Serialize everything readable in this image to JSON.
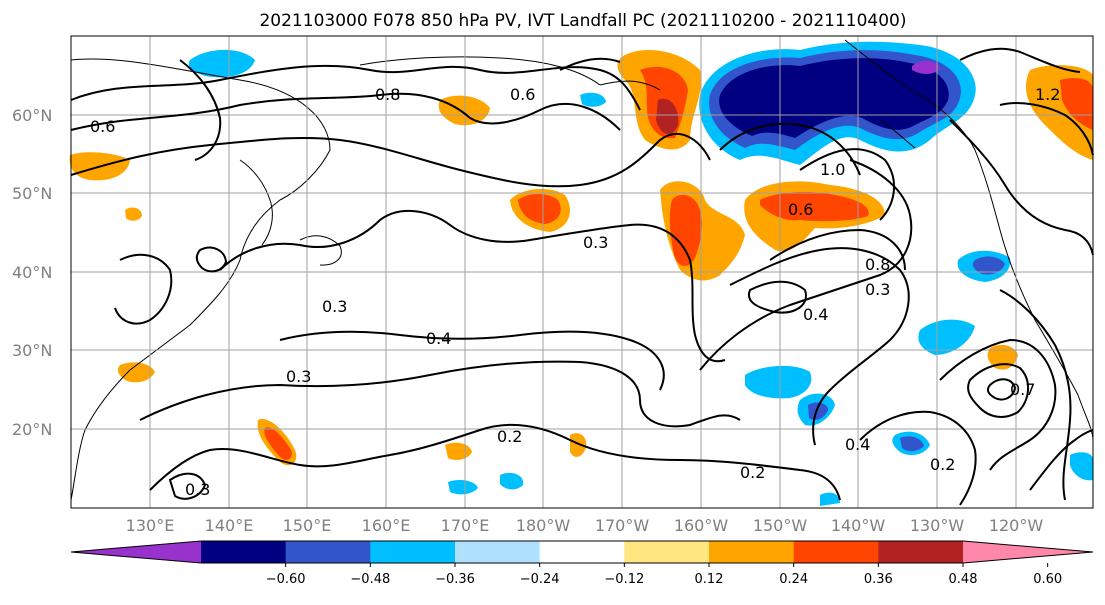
{
  "title": "2021103000 F078 850 hPa PV, IVT Landfall PC (2021110200 - 2021110400)",
  "lat_labels": [
    "60°N",
    "50°N",
    "40°N",
    "30°N",
    "20°N"
  ],
  "lon_labels": [
    "130°E",
    "140°E",
    "150°E",
    "160°E",
    "170°E",
    "180°W",
    "170°W",
    "160°W",
    "150°W",
    "140°W",
    "130°W",
    "120°W"
  ],
  "colorbar": {
    "ticks": [
      "−0.60",
      "−0.48",
      "−0.36",
      "−0.24",
      "−0.12",
      "0.12",
      "0.24",
      "0.36",
      "0.48",
      "0.60"
    ],
    "colors": [
      "#9932cc",
      "#000080",
      "#3355cc",
      "#00bfff",
      "#b0e2ff",
      "#ffffff",
      "#ffe680",
      "#ffa500",
      "#ff4500",
      "#b22222",
      "#ff88aa"
    ]
  },
  "contour_labels": [
    "0.6",
    "0.8",
    "1.0",
    "1.2",
    "0.3",
    "0.4",
    "0.2",
    "0.7"
  ],
  "colors": {
    "land_outline": "#000000",
    "grid": "#a0a0a0",
    "contour": "#000000"
  }
}
